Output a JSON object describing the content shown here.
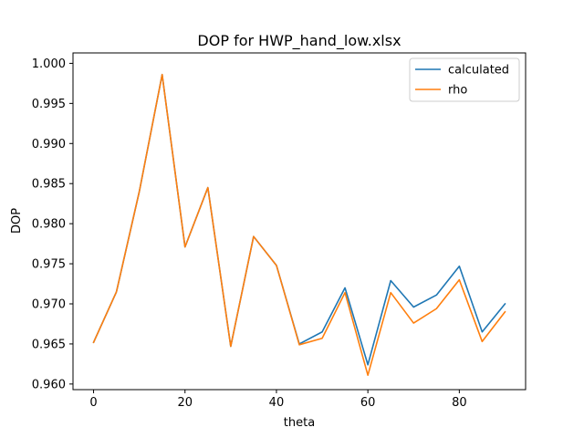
{
  "chart_data": {
    "type": "line",
    "title": "DOP for HWP_hand_low.xlsx",
    "xlabel": "theta",
    "ylabel": "DOP",
    "xlim": [
      -4.5,
      94.5
    ],
    "ylim": [
      0.9593,
      1.0013
    ],
    "xticks": [
      0,
      20,
      40,
      60,
      80
    ],
    "xtick_labels": [
      "0",
      "20",
      "40",
      "60",
      "80"
    ],
    "yticks": [
      0.96,
      0.965,
      0.97,
      0.975,
      0.98,
      0.985,
      0.99,
      0.995,
      1.0
    ],
    "ytick_labels": [
      "0.960",
      "0.965",
      "0.970",
      "0.975",
      "0.980",
      "0.985",
      "0.990",
      "0.995",
      "1.000"
    ],
    "grid": false,
    "legend_position": "upper right",
    "x": [
      0,
      5,
      10,
      15,
      20,
      25,
      30,
      35,
      40,
      45,
      50,
      55,
      60,
      65,
      70,
      75,
      80,
      85,
      90
    ],
    "series": [
      {
        "name": "calculated",
        "color": "#1f77b4",
        "values": [
          0.9652,
          0.9715,
          0.984,
          0.9986,
          0.9771,
          0.9845,
          0.9647,
          0.9784,
          0.9748,
          0.965,
          0.9665,
          0.972,
          0.9624,
          0.9729,
          0.9696,
          0.9711,
          0.9747,
          0.9665,
          0.97
        ]
      },
      {
        "name": "rho",
        "color": "#ff7f0e",
        "values": [
          0.9652,
          0.9715,
          0.984,
          0.9986,
          0.9771,
          0.9845,
          0.9647,
          0.9784,
          0.9748,
          0.9649,
          0.9657,
          0.9714,
          0.9611,
          0.9714,
          0.9676,
          0.9694,
          0.973,
          0.9653,
          0.969
        ]
      }
    ]
  }
}
